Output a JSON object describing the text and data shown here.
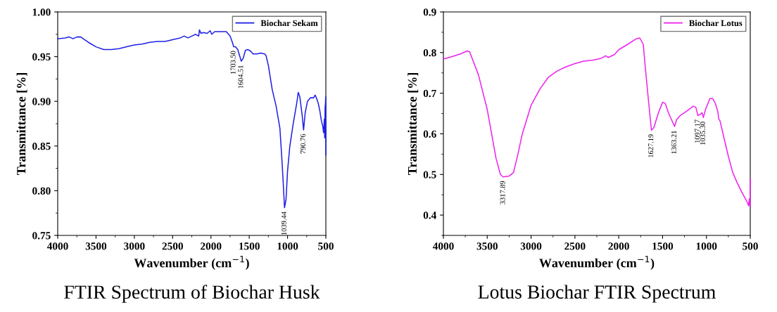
{
  "chart_data": [
    {
      "type": "line",
      "title": "FTIR Spectrum of Biochar Husk",
      "xlabel": "Wavenumber (cm$^{−1}$)",
      "ylabel": "Transmittance [%]",
      "xlim": [
        4000,
        500
      ],
      "xticks": [
        4000,
        3500,
        3000,
        2500,
        2000,
        1500,
        1000,
        500
      ],
      "ylim": [
        0.75,
        1.0
      ],
      "yticks": [
        {
          "value": 0.75,
          "label": "0.75"
        },
        {
          "value": 0.8,
          "label": "0.80"
        },
        {
          "value": 0.85,
          "label": "0.85"
        },
        {
          "value": 0.9,
          "label": "0.90"
        },
        {
          "value": 0.95,
          "label": "0.95"
        },
        {
          "value": 1.0,
          "label": "1.00"
        }
      ],
      "grid": false,
      "legend": "top right",
      "marker": "none",
      "line_style": "solid",
      "series": [
        {
          "name": "Biochar Sekam",
          "color": "#1f1fe6",
          "x": [
            4000,
            3900,
            3850,
            3800,
            3750,
            3700,
            3600,
            3500,
            3400,
            3300,
            3200,
            3100,
            3000,
            2900,
            2800,
            2700,
            2600,
            2500,
            2400,
            2350,
            2300,
            2250,
            2200,
            2160,
            2150,
            2130,
            2100,
            2050,
            2010,
            1990,
            1950,
            1900,
            1850,
            1800,
            1750,
            1720,
            1703.5,
            1680,
            1650,
            1604.5,
            1580,
            1550,
            1520,
            1480,
            1450,
            1400,
            1350,
            1300,
            1280,
            1250,
            1200,
            1150,
            1100,
            1070,
            1039.4,
            1020,
            1000,
            970,
            930,
            880,
            860,
            840,
            810,
            790.8,
            770,
            740,
            700,
            660,
            640,
            620,
            600,
            580,
            560,
            540,
            530,
            520,
            515,
            510,
            505,
            502,
            500
          ],
          "values": [
            0.97,
            0.971,
            0.972,
            0.97,
            0.972,
            0.972,
            0.966,
            0.961,
            0.958,
            0.958,
            0.959,
            0.961,
            0.963,
            0.964,
            0.966,
            0.967,
            0.967,
            0.969,
            0.971,
            0.973,
            0.971,
            0.973,
            0.975,
            0.973,
            0.98,
            0.976,
            0.977,
            0.976,
            0.979,
            0.975,
            0.978,
            0.978,
            0.978,
            0.978,
            0.973,
            0.966,
            0.961,
            0.961,
            0.958,
            0.945,
            0.948,
            0.957,
            0.958,
            0.956,
            0.953,
            0.953,
            0.954,
            0.953,
            0.951,
            0.94,
            0.913,
            0.895,
            0.87,
            0.83,
            0.781,
            0.79,
            0.822,
            0.85,
            0.873,
            0.898,
            0.91,
            0.905,
            0.885,
            0.868,
            0.887,
            0.9,
            0.904,
            0.904,
            0.907,
            0.903,
            0.898,
            0.89,
            0.879,
            0.872,
            0.865,
            0.88,
            0.859,
            0.893,
            0.898,
            0.905,
            0.84
          ]
        }
      ],
      "annotations": [
        {
          "text": "1703.50",
          "x": 1703.5,
          "y": 0.961
        },
        {
          "text": "1604.51",
          "x": 1604.5,
          "y": 0.945
        },
        {
          "text": "1039.44",
          "x": 1039.4,
          "y": 0.781
        },
        {
          "text": "790.76",
          "x": 790.8,
          "y": 0.868
        }
      ]
    },
    {
      "type": "line",
      "title": "Lotus Biochar FTIR Spectrum",
      "xlabel": "Wavenumber (cm$^{−1}$)",
      "ylabel": "Transmittance [%]",
      "xlim": [
        4000,
        500
      ],
      "xticks": [
        4000,
        3500,
        3000,
        2500,
        2000,
        1500,
        1000,
        500
      ],
      "ylim": [
        0.35,
        0.9
      ],
      "yticks": [
        0.4,
        0.5,
        0.6,
        0.7,
        0.8,
        0.9
      ],
      "grid": false,
      "legend": "top right",
      "marker": "none",
      "line_style": "solid",
      "series": [
        {
          "name": "Biochar Lotus",
          "color": "#ee22ee",
          "x": [
            4000,
            3900,
            3800,
            3730,
            3700,
            3680,
            3600,
            3500,
            3450,
            3400,
            3350,
            3317.9,
            3250,
            3200,
            3150,
            3100,
            3000,
            2900,
            2800,
            2700,
            2600,
            2500,
            2400,
            2300,
            2200,
            2150,
            2120,
            2050,
            2000,
            1900,
            1800,
            1760,
            1720,
            1700,
            1660,
            1627.2,
            1600,
            1550,
            1500,
            1470,
            1430,
            1363.2,
            1340,
            1300,
            1250,
            1200,
            1150,
            1120,
            1097.2,
            1070,
            1050,
            1035.3,
            1010,
            960,
            930,
            900,
            870,
            860,
            845,
            800,
            750,
            700,
            650,
            600,
            550,
            530,
            520,
            510,
            503,
            500
          ],
          "values": [
            0.784,
            0.79,
            0.797,
            0.804,
            0.802,
            0.79,
            0.745,
            0.66,
            0.6,
            0.54,
            0.5,
            0.494,
            0.496,
            0.505,
            0.55,
            0.6,
            0.67,
            0.71,
            0.74,
            0.755,
            0.765,
            0.773,
            0.779,
            0.781,
            0.786,
            0.792,
            0.788,
            0.795,
            0.807,
            0.82,
            0.834,
            0.836,
            0.82,
            0.77,
            0.68,
            0.609,
            0.615,
            0.65,
            0.678,
            0.675,
            0.65,
            0.618,
            0.635,
            0.645,
            0.652,
            0.66,
            0.668,
            0.665,
            0.645,
            0.648,
            0.652,
            0.64,
            0.66,
            0.687,
            0.687,
            0.676,
            0.655,
            0.637,
            0.632,
            0.59,
            0.545,
            0.505,
            0.48,
            0.458,
            0.438,
            0.43,
            0.423,
            0.44,
            0.42,
            0.49
          ]
        }
      ],
      "annotations": [
        {
          "text": "3317.89",
          "x": 3317.9,
          "y": 0.494
        },
        {
          "text": "1627.19",
          "x": 1627.2,
          "y": 0.609
        },
        {
          "text": "1363.21",
          "x": 1363.2,
          "y": 0.618
        },
        {
          "text": "1097.17",
          "x": 1097.2,
          "y": 0.645
        },
        {
          "text": "1035.30",
          "x": 1035.3,
          "y": 0.64
        }
      ]
    }
  ]
}
